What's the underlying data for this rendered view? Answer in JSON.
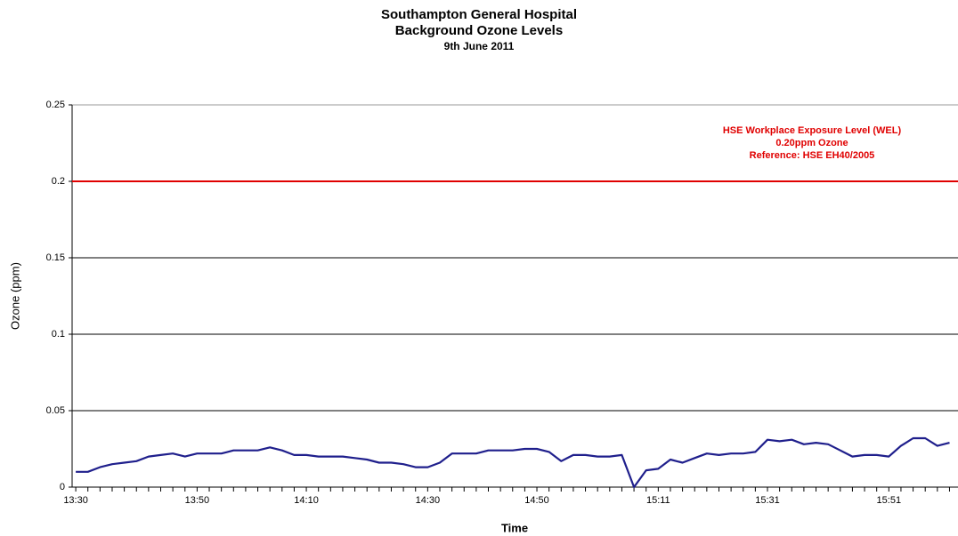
{
  "chart_data": {
    "type": "line",
    "title": [
      "Southampton General Hospital",
      "Background Ozone Levels",
      "9th June 2011"
    ],
    "y_label": "Ozone (ppm)",
    "x_label": "Time",
    "categories": [
      "13:30",
      null,
      null,
      null,
      null,
      null,
      null,
      null,
      null,
      null,
      "13:50",
      null,
      null,
      null,
      null,
      null,
      null,
      null,
      null,
      "14:10",
      null,
      null,
      null,
      null,
      null,
      null,
      null,
      null,
      null,
      "14:30",
      null,
      null,
      null,
      null,
      null,
      null,
      null,
      null,
      "14:50",
      null,
      null,
      null,
      null,
      null,
      null,
      null,
      null,
      null,
      "15:11",
      null,
      null,
      null,
      null,
      null,
      null,
      null,
      null,
      "15:31",
      null,
      null,
      null,
      null,
      null,
      null,
      null,
      null,
      null,
      "15:51",
      null,
      null,
      null,
      null,
      null
    ],
    "values": [
      0.01,
      0.01,
      0.013,
      0.015,
      0.016,
      0.017,
      0.02,
      0.021,
      0.022,
      0.02,
      0.022,
      0.022,
      0.022,
      0.024,
      0.024,
      0.024,
      0.026,
      0.024,
      0.021,
      0.021,
      0.02,
      0.02,
      0.02,
      0.019,
      0.018,
      0.016,
      0.016,
      0.015,
      0.013,
      0.013,
      0.016,
      0.022,
      0.022,
      0.022,
      0.024,
      0.024,
      0.024,
      0.025,
      0.025,
      0.023,
      0.017,
      0.021,
      0.021,
      0.02,
      0.02,
      0.021,
      0.0,
      0.011,
      0.012,
      0.018,
      0.016,
      0.019,
      0.022,
      0.021,
      0.022,
      0.022,
      0.023,
      0.031,
      0.03,
      0.031,
      0.028,
      0.029,
      0.028,
      0.024,
      0.02,
      0.021,
      0.021,
      0.02,
      0.027,
      0.032,
      0.032,
      0.027,
      0.029
    ],
    "color": "#1f1f8c",
    "ylim": [
      0,
      0.25
    ],
    "yticks": [
      0,
      0.05,
      0.1,
      0.15,
      0.2,
      0.25
    ],
    "grid": true,
    "reference_line": {
      "value": 0.2,
      "color": "#e00000",
      "label": [
        "HSE Workplace Exposure Level (WEL)",
        "0.20ppm Ozone",
        "Reference: HSE EH40/2005"
      ]
    }
  }
}
